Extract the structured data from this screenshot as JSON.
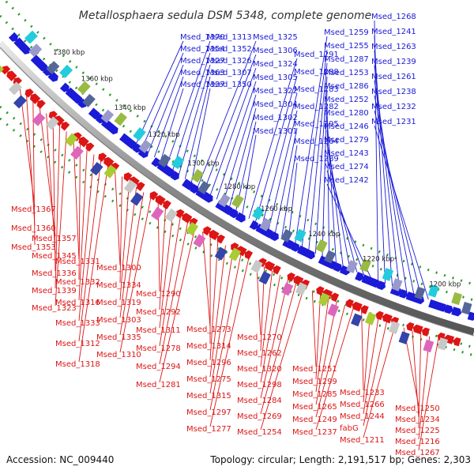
{
  "title": "Metallosphaera sedula DSM 5348, complete genome",
  "accession": "Accession: NC_009440",
  "topology": "Topology: circular; Length: 2,191,517 bp; Genes: 2,303",
  "colors": {
    "forward": "#1a1ad8",
    "reverse": "#dd1515",
    "backbone": "#999999",
    "dots": "#2a9a2a"
  },
  "ticks": [
    "1380 kbp",
    "1360 kbp",
    "1340 kbp",
    "1320 kbp",
    "1300 kbp",
    "1280 kbp",
    "1260 kbp",
    "1240 kbp",
    "1220 kbp",
    "1200 kbp"
  ],
  "blue_labels": [
    "Msed_1370",
    "Msed_1354",
    "Msed_1327",
    "Msed_1363",
    "Msed_1337",
    "Msed_1313",
    "Msed_1352",
    "Msed_1326",
    "Msed_1307",
    "Msed_1350",
    "Msed_1325",
    "Msed_1306",
    "Msed_1324",
    "Msed_1305",
    "Msed_1322",
    "Msed_1304",
    "Msed_1302",
    "Msed_1301",
    "Msed_1291",
    "Msed_1288",
    "Msed_1283",
    "Msed_1282",
    "Msed_1295",
    "Msed_1264",
    "Msed_1289",
    "Msed_1259",
    "Msed_1255",
    "Msed_1287",
    "Msed_1253",
    "Msed_1286",
    "Msed_1252",
    "Msed_1280",
    "Msed_1246",
    "Msed_1279",
    "Msed_1243",
    "Msed_1274",
    "Msed_1242",
    "Msed_1268",
    "Msed_1241",
    "Msed_1263",
    "Msed_1239",
    "Msed_1261",
    "Msed_1238",
    "Msed_1232",
    "Msed_1231"
  ],
  "red_labels": [
    "Msed_1367",
    "Msed_1360",
    "Msed_1353",
    "Msed_1357",
    "Msed_1345",
    "Msed_1336",
    "Msed_1339",
    "Msed_1323",
    "Msed_1331",
    "Msed_1332",
    "Msed_1316",
    "Msed_1333",
    "Msed_1312",
    "Msed_1318",
    "Msed_1300",
    "Msed_1334",
    "Msed_1319",
    "Msed_1303",
    "Msed_1335",
    "Msed_1310",
    "Msed_1290",
    "Msed_1292",
    "Msed_1311",
    "Msed_1278",
    "Msed_1294",
    "Msed_1281",
    "Msed_1273",
    "Msed_1314",
    "Msed_1296",
    "Msed_1275",
    "Msed_1315",
    "Msed_1297",
    "Msed_1277",
    "Msed_1270",
    "Msed_1262",
    "Msed_1320",
    "Msed_1298",
    "Msed_1284",
    "Msed_1269",
    "Msed_1254",
    "Msed_1251",
    "Msed_1299",
    "Msed_1285",
    "Msed_1265",
    "Msed_1249",
    "Msed_1237",
    "Msed_1233",
    "Msed_1266",
    "Msed_1244",
    "fabG",
    "Msed_1211",
    "Msed_1250",
    "Msed_1234",
    "Msed_1225",
    "Msed_1216",
    "Msed_1267"
  ]
}
